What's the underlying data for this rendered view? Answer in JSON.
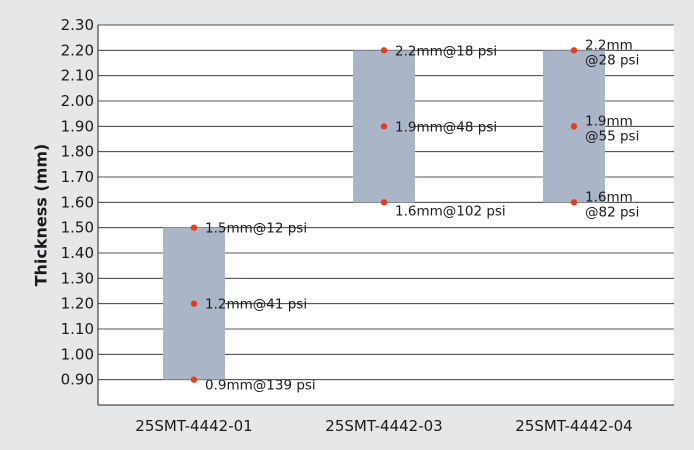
{
  "chart_data": {
    "type": "bar",
    "subtype": "floating-range",
    "ylabel": "Thickness (mm)",
    "ylim": [
      0.8,
      2.3
    ],
    "yticks": [
      "0.90",
      "1.00",
      "1.10",
      "1.20",
      "1.30",
      "1.40",
      "1.50",
      "1.60",
      "1.70",
      "1.80",
      "1.90",
      "2.00",
      "2.10",
      "2.20",
      "2.30"
    ],
    "grid": true,
    "categories": [
      "25SMT-4442-01",
      "25SMT-4442-03",
      "25SMT-4442-04"
    ],
    "ranges": [
      {
        "category": "25SMT-4442-01",
        "min": 0.9,
        "max": 1.5
      },
      {
        "category": "25SMT-4442-03",
        "min": 1.6,
        "max": 2.2
      },
      {
        "category": "25SMT-4442-04",
        "min": 1.6,
        "max": 2.2
      }
    ],
    "points": [
      {
        "category": "25SMT-4442-01",
        "y": 1.5,
        "label": [
          "1.5mm@12 psi"
        ]
      },
      {
        "category": "25SMT-4442-01",
        "y": 1.2,
        "label": [
          "1.2mm@41 psi"
        ]
      },
      {
        "category": "25SMT-4442-01",
        "y": 0.9,
        "label": [
          "0.9mm@139 psi"
        ]
      },
      {
        "category": "25SMT-4442-03",
        "y": 2.2,
        "label": [
          "2.2mm@18 psi"
        ]
      },
      {
        "category": "25SMT-4442-03",
        "y": 1.9,
        "label": [
          "1.9mm@48 psi"
        ]
      },
      {
        "category": "25SMT-4442-03",
        "y": 1.6,
        "label": [
          "1.6mm@102 psi"
        ]
      },
      {
        "category": "25SMT-4442-04",
        "y": 2.2,
        "label": [
          "2.2mm",
          "@28 psi"
        ]
      },
      {
        "category": "25SMT-4442-04",
        "y": 1.9,
        "label": [
          "1.9mm",
          "@55 psi"
        ]
      },
      {
        "category": "25SMT-4442-04",
        "y": 1.6,
        "label": [
          "1.6mm",
          "@82 psi"
        ]
      }
    ],
    "colors": {
      "background": "#e6e7e8",
      "plot_background": "#ffffff",
      "bar": "#aab5c8",
      "point": "#e0401e",
      "grid": "#222222"
    }
  }
}
